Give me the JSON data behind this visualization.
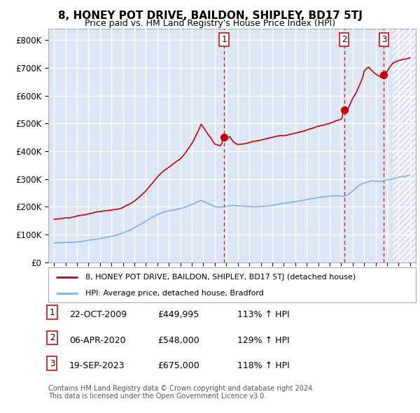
{
  "title": "8, HONEY POT DRIVE, BAILDON, SHIPLEY, BD17 5TJ",
  "subtitle": "Price paid vs. HM Land Registry's House Price Index (HPI)",
  "legend_line1": "8, HONEY POT DRIVE, BAILDON, SHIPLEY, BD17 5TJ (detached house)",
  "legend_line2": "HPI: Average price, detached house, Bradford",
  "footer": "Contains HM Land Registry data © Crown copyright and database right 2024.\nThis data is licensed under the Open Government Licence v3.0.",
  "sales": [
    {
      "num": 1,
      "date": "22-OCT-2009",
      "price": "£449,995",
      "hpi": "113% ↑ HPI",
      "year": 2009.8
    },
    {
      "num": 2,
      "date": "06-APR-2020",
      "price": "£548,000",
      "hpi": "129% ↑ HPI",
      "year": 2020.27
    },
    {
      "num": 3,
      "date": "19-SEP-2023",
      "price": "£675,000",
      "hpi": "118% ↑ HPI",
      "year": 2023.72
    }
  ],
  "sale_prices": [
    449995,
    548000,
    675000
  ],
  "sale_years": [
    2009.8,
    2020.27,
    2023.72
  ],
  "ylim": [
    0,
    840000
  ],
  "xlim": [
    1994.5,
    2026.5
  ],
  "yticks": [
    0,
    100000,
    200000,
    300000,
    400000,
    500000,
    600000,
    700000,
    800000
  ],
  "ytick_labels": [
    "£0",
    "£100K",
    "£200K",
    "£300K",
    "£400K",
    "£500K",
    "£600K",
    "£700K",
    "£800K"
  ],
  "xticks": [
    1995,
    1996,
    1997,
    1998,
    1999,
    2000,
    2001,
    2002,
    2003,
    2004,
    2005,
    2006,
    2007,
    2008,
    2009,
    2010,
    2011,
    2012,
    2013,
    2014,
    2015,
    2016,
    2017,
    2018,
    2019,
    2020,
    2021,
    2022,
    2023,
    2024,
    2025,
    2026
  ],
  "bg_color": "#dde6f5",
  "red_color": "#cc0000",
  "blue_color": "#7fb3e8",
  "grid_color": "#ffffff",
  "future_x_start": 2024.5,
  "red_anchors": [
    [
      1995.0,
      155000
    ],
    [
      1995.5,
      157000
    ],
    [
      1996.0,
      160000
    ],
    [
      1996.5,
      163000
    ],
    [
      1997.0,
      168000
    ],
    [
      1997.5,
      172000
    ],
    [
      1998.0,
      176000
    ],
    [
      1998.5,
      180000
    ],
    [
      1999.0,
      183000
    ],
    [
      1999.5,
      185000
    ],
    [
      2000.0,
      187000
    ],
    [
      2000.5,
      192000
    ],
    [
      2001.0,
      200000
    ],
    [
      2001.5,
      210000
    ],
    [
      2002.0,
      222000
    ],
    [
      2002.5,
      240000
    ],
    [
      2003.0,
      260000
    ],
    [
      2003.5,
      285000
    ],
    [
      2004.0,
      310000
    ],
    [
      2004.5,
      330000
    ],
    [
      2005.0,
      345000
    ],
    [
      2005.5,
      360000
    ],
    [
      2006.0,
      375000
    ],
    [
      2006.5,
      400000
    ],
    [
      2007.0,
      430000
    ],
    [
      2007.5,
      470000
    ],
    [
      2007.8,
      500000
    ],
    [
      2008.0,
      490000
    ],
    [
      2008.5,
      460000
    ],
    [
      2009.0,
      430000
    ],
    [
      2009.5,
      425000
    ],
    [
      2009.8,
      449995
    ],
    [
      2010.0,
      455000
    ],
    [
      2010.3,
      460000
    ],
    [
      2010.6,
      440000
    ],
    [
      2011.0,
      430000
    ],
    [
      2011.5,
      435000
    ],
    [
      2012.0,
      440000
    ],
    [
      2012.5,
      445000
    ],
    [
      2013.0,
      450000
    ],
    [
      2013.5,
      455000
    ],
    [
      2014.0,
      460000
    ],
    [
      2014.5,
      465000
    ],
    [
      2015.0,
      468000
    ],
    [
      2015.5,
      472000
    ],
    [
      2016.0,
      478000
    ],
    [
      2016.5,
      484000
    ],
    [
      2017.0,
      490000
    ],
    [
      2017.5,
      495000
    ],
    [
      2018.0,
      500000
    ],
    [
      2018.5,
      505000
    ],
    [
      2019.0,
      510000
    ],
    [
      2019.5,
      518000
    ],
    [
      2020.0,
      525000
    ],
    [
      2020.27,
      548000
    ],
    [
      2020.5,
      555000
    ],
    [
      2020.8,
      580000
    ],
    [
      2021.0,
      600000
    ],
    [
      2021.3,
      620000
    ],
    [
      2021.5,
      640000
    ],
    [
      2021.7,
      660000
    ],
    [
      2021.9,
      680000
    ],
    [
      2022.0,
      700000
    ],
    [
      2022.2,
      710000
    ],
    [
      2022.4,
      715000
    ],
    [
      2022.6,
      705000
    ],
    [
      2022.8,
      695000
    ],
    [
      2023.0,
      690000
    ],
    [
      2023.2,
      685000
    ],
    [
      2023.5,
      678000
    ],
    [
      2023.72,
      675000
    ],
    [
      2024.0,
      700000
    ],
    [
      2024.3,
      720000
    ],
    [
      2024.5,
      730000
    ],
    [
      2025.0,
      740000
    ],
    [
      2025.5,
      745000
    ],
    [
      2026.0,
      750000
    ]
  ],
  "hpi_anchors": [
    [
      1995.0,
      70000
    ],
    [
      1995.5,
      71000
    ],
    [
      1996.0,
      72000
    ],
    [
      1996.5,
      73000
    ],
    [
      1997.0,
      75000
    ],
    [
      1997.5,
      77000
    ],
    [
      1998.0,
      80000
    ],
    [
      1998.5,
      83000
    ],
    [
      1999.0,
      87000
    ],
    [
      1999.5,
      91000
    ],
    [
      2000.0,
      95000
    ],
    [
      2000.5,
      100000
    ],
    [
      2001.0,
      107000
    ],
    [
      2001.5,
      115000
    ],
    [
      2002.0,
      126000
    ],
    [
      2002.5,
      138000
    ],
    [
      2003.0,
      150000
    ],
    [
      2003.5,
      162000
    ],
    [
      2004.0,
      172000
    ],
    [
      2004.5,
      180000
    ],
    [
      2005.0,
      185000
    ],
    [
      2005.5,
      188000
    ],
    [
      2006.0,
      192000
    ],
    [
      2006.5,
      198000
    ],
    [
      2007.0,
      207000
    ],
    [
      2007.5,
      216000
    ],
    [
      2007.8,
      222000
    ],
    [
      2008.0,
      218000
    ],
    [
      2008.5,
      210000
    ],
    [
      2009.0,
      200000
    ],
    [
      2009.5,
      198000
    ],
    [
      2009.8,
      200000
    ],
    [
      2010.0,
      202000
    ],
    [
      2010.5,
      205000
    ],
    [
      2011.0,
      203000
    ],
    [
      2011.5,
      202000
    ],
    [
      2012.0,
      200000
    ],
    [
      2012.5,
      199000
    ],
    [
      2013.0,
      200000
    ],
    [
      2013.5,
      202000
    ],
    [
      2014.0,
      205000
    ],
    [
      2014.5,
      208000
    ],
    [
      2015.0,
      212000
    ],
    [
      2015.5,
      215000
    ],
    [
      2016.0,
      218000
    ],
    [
      2016.5,
      222000
    ],
    [
      2017.0,
      226000
    ],
    [
      2017.5,
      230000
    ],
    [
      2018.0,
      233000
    ],
    [
      2018.5,
      235000
    ],
    [
      2019.0,
      237000
    ],
    [
      2019.5,
      238000
    ],
    [
      2020.0,
      237000
    ],
    [
      2020.27,
      236000
    ],
    [
      2020.5,
      240000
    ],
    [
      2020.8,
      248000
    ],
    [
      2021.0,
      255000
    ],
    [
      2021.3,
      265000
    ],
    [
      2021.5,
      272000
    ],
    [
      2021.7,
      278000
    ],
    [
      2022.0,
      283000
    ],
    [
      2022.3,
      288000
    ],
    [
      2022.6,
      292000
    ],
    [
      2023.0,
      290000
    ],
    [
      2023.5,
      290000
    ],
    [
      2024.0,
      295000
    ],
    [
      2024.5,
      298000
    ],
    [
      2025.0,
      305000
    ],
    [
      2025.5,
      308000
    ],
    [
      2026.0,
      312000
    ]
  ]
}
